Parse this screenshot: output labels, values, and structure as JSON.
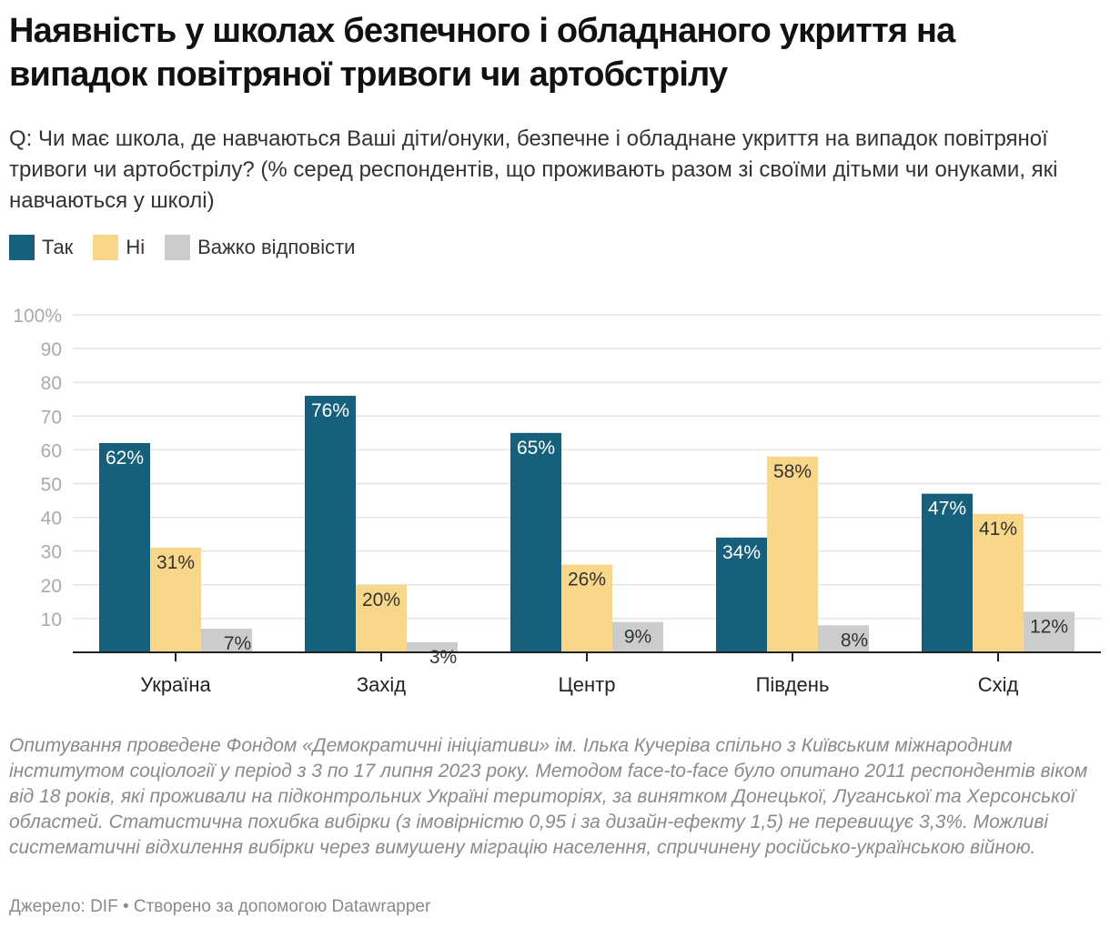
{
  "title": "Наявність у школах безпечного і обладнаного укриття на випадок повітряної тривоги чи артобстрілу",
  "subtitle": "Q: Чи має школа, де навчаються Ваші діти/онуки, безпечне і обладнане укриття на випадок повітряної тривоги чи артобстрілу? (% серед респондентів, що проживають разом зі своїми дітьми чи онуками, які навчаються у школі)",
  "chart_data": {
    "type": "bar",
    "categories": [
      "Україна",
      "Захід",
      "Центр",
      "Південь",
      "Схід"
    ],
    "series": [
      {
        "name": "Так",
        "color": "#17607b",
        "label_color": "#ffffff",
        "values": [
          62,
          76,
          65,
          34,
          47
        ]
      },
      {
        "name": "Ні",
        "color": "#f8d68a",
        "label_color": "#333333",
        "values": [
          31,
          20,
          26,
          58,
          41
        ]
      },
      {
        "name": "Важко відповісти",
        "color": "#cccccc",
        "label_color": "#333333",
        "values": [
          7,
          3,
          9,
          8,
          12
        ]
      }
    ],
    "ylim": [
      0,
      100
    ],
    "yticks": [
      10,
      20,
      30,
      40,
      50,
      60,
      70,
      80,
      90,
      100
    ],
    "ytick_labels": [
      "10",
      "20",
      "30",
      "40",
      "50",
      "60",
      "70",
      "80",
      "90",
      "100%"
    ],
    "value_suffix": "%",
    "grid": true,
    "legend_placement": "top-left"
  },
  "notes": "Опитування проведене Фондом «Демократичні ініціативи» ім. Ілька Кучеріва спільно з Київським міжнародним інститутом соціології у період з 3 по 17 липня 2023 року. Методом face-to-face було опитано 2011 респондентів віком від 18 років, які проживали на підконтрольних Україні територіях, за винятком Донецької, Луганської та Херсонської областей. Статистична похибка вибірки (з імовірністю 0,95 і за дизайн-ефекту 1,5) не перевищує 3,3%. Можливі систематичні відхилення вибірки через вимушену міграцію населення, спричинену російсько-українською війною.",
  "source": "Джерело: DIF • Створено за допомогою Datawrapper"
}
